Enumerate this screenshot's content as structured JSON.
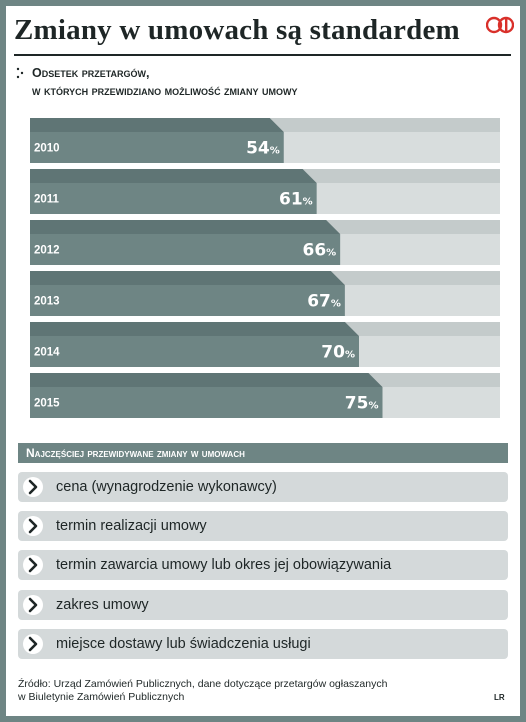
{
  "title": "Zmiany w umowach są standardem",
  "logo": "RP",
  "subtitle": {
    "line1": "Odsetek przetargów,",
    "line2": "w których przewidziano możliwość zmiany umowy"
  },
  "colors": {
    "bar_dark": "#6e8584",
    "bar_dark_top": "#5f7575",
    "bar_light": "#d8dddd",
    "bar_light_top": "#c4cbcb",
    "logo_red": "#d9302a"
  },
  "chart_data": {
    "type": "bar",
    "orientation": "horizontal",
    "categories": [
      "2010",
      "2011",
      "2012",
      "2013",
      "2014",
      "2015"
    ],
    "values": [
      54,
      61,
      66,
      67,
      70,
      75
    ],
    "value_labels": [
      "54",
      "61",
      "66",
      "67",
      "70",
      "75"
    ],
    "unit": "%",
    "xlim": [
      0,
      100
    ]
  },
  "changes": {
    "header": "Najczęściej przewidywane zmiany w umowach",
    "items": [
      "cena (wynagrodzenie wykonawcy)",
      "termin realizacji umowy",
      "termin zawarcia umowy lub okres jej obowiązywania",
      "zakres umowy",
      "miejsce dostawy lub świadczenia usługi"
    ],
    "icon": "arrow-right-circle-icon"
  },
  "source": {
    "line1": "Źródło: Urząd Zamówień Publicznych, dane dotyczące przetargów ogłaszanych",
    "line2": "w Biuletynie Zamówień Publicznych"
  },
  "initials": "LR"
}
